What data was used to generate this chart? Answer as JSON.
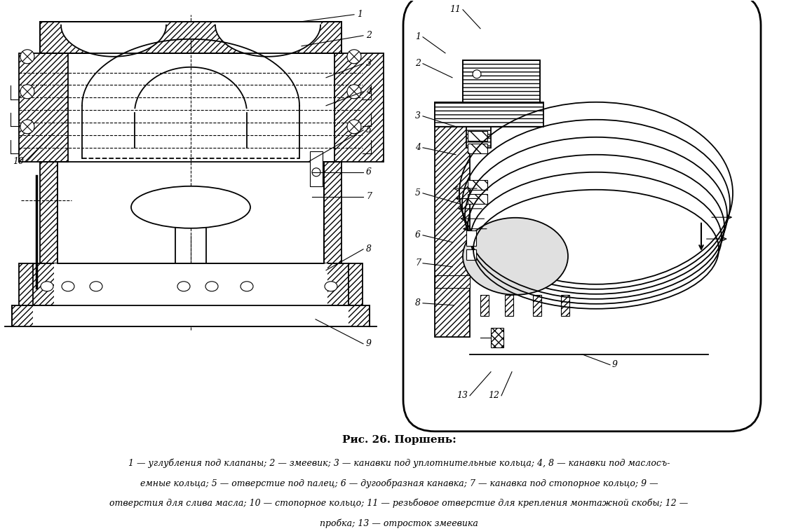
{
  "title": "Рис. 26. Поршень:",
  "caption_lines": [
    "1 — углубления под клапаны; 2 — змеевик; 3 — канавки под уплотнительные кольца; 4, 8 — канавки под маслосъ-",
    "емные кольца; 5 — отверстие под палец; 6 — дугообразная канавка; 7 — канавка под стопорное кольцо; 9 —",
    "отверстия для слива масла; 10 — стопорное кольцо; 11 — резьбовое отверстие для крепления монтажной скобы; 12 —",
    "пробка; 13 — отросток змеевика"
  ],
  "bg_color": "#ffffff",
  "lc": "#000000",
  "fig_width": 11.38,
  "fig_height": 7.58,
  "dpi": 100
}
